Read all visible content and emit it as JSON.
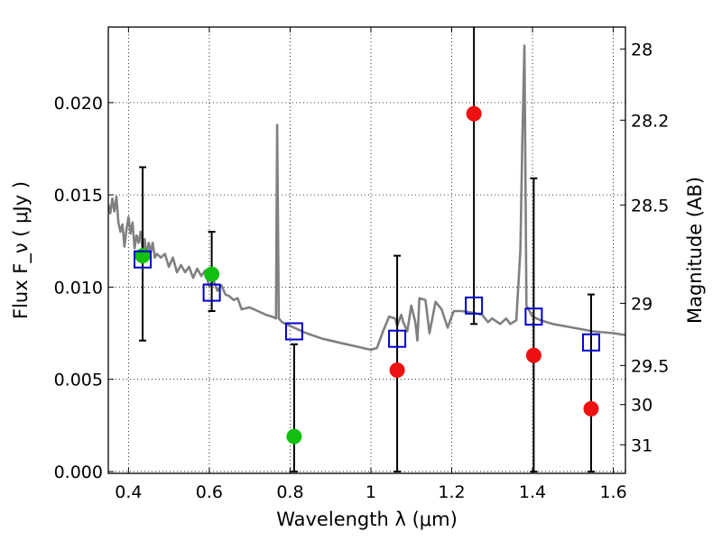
{
  "chart_data": {
    "type": "scatter",
    "xlabel": "Wavelength  λ (μm)",
    "ylabel": "Flux  F_ν  ( μJy )",
    "ylabel_right": "Magnitude (AB)",
    "xlim": [
      0.35,
      1.63
    ],
    "ylim": [
      -0.0001,
      0.0241
    ],
    "x_ticks": [
      0.4,
      0.6,
      0.8,
      1.0,
      1.2,
      1.4,
      1.6
    ],
    "x_tick_labels": [
      "0.4",
      "0.6",
      "0.8",
      "1",
      "1.2",
      "1.4",
      "1.6"
    ],
    "y_ticks": [
      0.0,
      0.005,
      0.01,
      0.015,
      0.02
    ],
    "y_tick_labels": [
      "0.000",
      "0.005",
      "0.010",
      "0.015",
      "0.020"
    ],
    "right_ticks": [
      {
        "label": "28",
        "flux": 0.02291
      },
      {
        "label": "28.2",
        "flux": 0.01905
      },
      {
        "label": "28.5",
        "flux": 0.01445
      },
      {
        "label": "29",
        "flux": 0.00912
      },
      {
        "label": "29.5",
        "flux": 0.00575
      },
      {
        "label": "30",
        "flux": 0.00363
      },
      {
        "label": "31",
        "flux": 0.00145
      }
    ],
    "grid": true,
    "colors": {
      "model": "#808080",
      "detected": "#11c011",
      "upper": "#ee1111",
      "model_photometry": "#0000cc",
      "errorbar": "#000000"
    },
    "model_sed": {
      "x": [
        0.35,
        0.355,
        0.36,
        0.365,
        0.37,
        0.375,
        0.38,
        0.385,
        0.39,
        0.395,
        0.4,
        0.405,
        0.41,
        0.415,
        0.42,
        0.425,
        0.43,
        0.435,
        0.44,
        0.445,
        0.45,
        0.455,
        0.46,
        0.465,
        0.47,
        0.48,
        0.49,
        0.5,
        0.51,
        0.52,
        0.53,
        0.54,
        0.55,
        0.56,
        0.57,
        0.58,
        0.59,
        0.6,
        0.61,
        0.62,
        0.63,
        0.64,
        0.65,
        0.66,
        0.67,
        0.68,
        0.7,
        0.72,
        0.74,
        0.755,
        0.765,
        0.768,
        0.772,
        0.78,
        0.8,
        0.84,
        0.88,
        0.92,
        0.96,
        1.0,
        1.015,
        1.03,
        1.045,
        1.06,
        1.065,
        1.075,
        1.08,
        1.09,
        1.1,
        1.11,
        1.115,
        1.12,
        1.135,
        1.145,
        1.16,
        1.175,
        1.19,
        1.205,
        1.225,
        1.255,
        1.275,
        1.29,
        1.3,
        1.32,
        1.335,
        1.345,
        1.36,
        1.37,
        1.375,
        1.38,
        1.385,
        1.395,
        1.4,
        1.42,
        1.45,
        1.5,
        1.55,
        1.6,
        1.63
      ],
      "y": [
        0.0145,
        0.014,
        0.0148,
        0.0141,
        0.0149,
        0.0135,
        0.013,
        0.0134,
        0.0122,
        0.0131,
        0.0138,
        0.0129,
        0.0135,
        0.0121,
        0.0128,
        0.0124,
        0.013,
        0.012,
        0.0126,
        0.0117,
        0.0124,
        0.0119,
        0.0124,
        0.0116,
        0.0118,
        0.0116,
        0.0118,
        0.0111,
        0.0116,
        0.0108,
        0.0112,
        0.0108,
        0.0111,
        0.0105,
        0.011,
        0.0106,
        0.0109,
        0.01,
        0.0104,
        0.0098,
        0.0101,
        0.0096,
        0.0095,
        0.0093,
        0.0094,
        0.0088,
        0.0089,
        0.0087,
        0.0085,
        0.0084,
        0.0083,
        0.0188,
        0.0083,
        0.0081,
        0.0079,
        0.0075,
        0.0072,
        0.007,
        0.0068,
        0.0066,
        0.0067,
        0.0076,
        0.0084,
        0.0083,
        0.0079,
        0.0085,
        0.0081,
        0.0076,
        0.009,
        0.0081,
        0.0071,
        0.0094,
        0.0093,
        0.0075,
        0.0092,
        0.0088,
        0.0078,
        0.0087,
        0.0087,
        0.0086,
        0.0085,
        0.0081,
        0.0083,
        0.008,
        0.0083,
        0.008,
        0.0082,
        0.012,
        0.018,
        0.0231,
        0.009,
        0.0086,
        0.0084,
        0.0082,
        0.008,
        0.0078,
        0.0076,
        0.0075,
        0.0074
      ]
    },
    "model_photometry": {
      "x": [
        0.435,
        0.606,
        0.81,
        1.065,
        1.255,
        1.403,
        1.545
      ],
      "y": [
        0.0115,
        0.0097,
        0.0076,
        0.0072,
        0.009,
        0.0084,
        0.007
      ]
    },
    "detections": {
      "x": [
        0.435,
        0.606,
        0.81
      ],
      "y": [
        0.0117,
        0.0107,
        0.0019
      ],
      "yerr_low": [
        0.0071,
        0.0087,
        0.0
      ],
      "yerr_high": [
        0.0165,
        0.013,
        0.0069
      ]
    },
    "upper_limits": {
      "x": [
        1.065,
        1.255,
        1.403,
        1.545
      ],
      "y": [
        0.0055,
        0.0194,
        0.0063,
        0.0034
      ],
      "yerr_low": [
        0.0,
        0.008,
        0.0,
        0.0
      ],
      "yerr_high": [
        0.0117,
        0.0245,
        0.0159,
        0.0096
      ]
    }
  }
}
